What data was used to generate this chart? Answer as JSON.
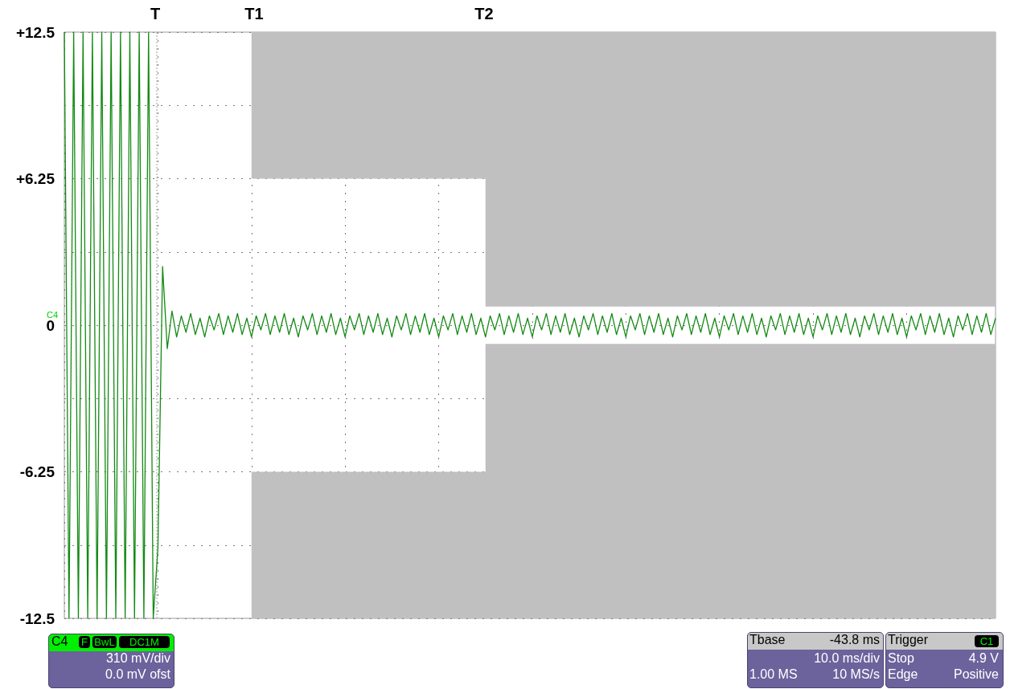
{
  "chart_data": {
    "type": "line",
    "categories": [
      null,
      null,
      null,
      null,
      null,
      null,
      null,
      null,
      null,
      null,
      null,
      null,
      null,
      null,
      null,
      null,
      null,
      null,
      null,
      null,
      null,
      null,
      null,
      null,
      null,
      null,
      null,
      null,
      null,
      null,
      null,
      null,
      null,
      null,
      null,
      null,
      null,
      null,
      null,
      null,
      null,
      null,
      null,
      null,
      null,
      null,
      null,
      null,
      null,
      null,
      null,
      null,
      null,
      null,
      null,
      null,
      null,
      null,
      null,
      null,
      null,
      null,
      null,
      null,
      null,
      null,
      null,
      null,
      null,
      null,
      null,
      null,
      null,
      null,
      null,
      null,
      null,
      null,
      null,
      null,
      null,
      null,
      null,
      null,
      null,
      null,
      null,
      null,
      null,
      null,
      null,
      null,
      null,
      null,
      null,
      null,
      null,
      null,
      null,
      null,
      null,
      null,
      null,
      null,
      null,
      null,
      null,
      null,
      null,
      null,
      null,
      null,
      null,
      null,
      null,
      null,
      null,
      null,
      null,
      null,
      null,
      null,
      null,
      null,
      null,
      null,
      null,
      null,
      null,
      null,
      null,
      null,
      null,
      null,
      null,
      null,
      null,
      null,
      null,
      null,
      null,
      null,
      null,
      null,
      null,
      null,
      null,
      null,
      null,
      null,
      null,
      null,
      null,
      null,
      null,
      null,
      null,
      null,
      null,
      null,
      null,
      null,
      null,
      null,
      null,
      null,
      null,
      null,
      null,
      null,
      null,
      null,
      null,
      null,
      null,
      null,
      null,
      null,
      null,
      null,
      null,
      null,
      null,
      null,
      null,
      null,
      null,
      null,
      null,
      null,
      null,
      null,
      null,
      null,
      null,
      null,
      null,
      null,
      null,
      null
    ],
    "series": [
      {
        "color": "#138a13",
        "values": [
          12.5,
          -12.5,
          12.5,
          -12.5,
          12.5,
          -12.5,
          12.5,
          -12.5,
          12.5,
          -12.5,
          12.5,
          -12.5,
          12.5,
          -12.5,
          12.5,
          -12.5,
          12.5,
          -12.5,
          12.5,
          -12.5,
          -9.5,
          2.5,
          -1.0,
          0.6,
          -0.5,
          0.4,
          -0.3,
          0.5,
          -0.4,
          0.3,
          -0.5,
          0.4,
          -0.2,
          0.5,
          -0.4,
          0.4,
          -0.3,
          0.5,
          -0.4,
          0.3,
          -0.5,
          0.4,
          -0.2,
          0.5,
          -0.4,
          0.4,
          -0.3,
          0.5,
          -0.4,
          0.3,
          -0.5,
          0.4,
          -0.2,
          0.5,
          -0.4,
          0.4,
          -0.3,
          0.5,
          -0.4,
          0.3,
          -0.5,
          0.4,
          -0.2,
          0.5,
          -0.4,
          0.4,
          -0.3,
          0.5,
          -0.4,
          0.3,
          -0.5,
          0.4,
          -0.2,
          0.5,
          -0.4,
          0.4,
          -0.3,
          0.5,
          -0.4,
          0.3,
          -0.5,
          0.4,
          -0.2,
          0.5,
          -0.4,
          0.4,
          -0.3,
          0.5,
          -0.4,
          0.3,
          -0.5,
          0.4,
          -0.2,
          0.5,
          -0.4,
          0.4,
          -0.3,
          0.5,
          -0.4,
          0.3,
          -0.5,
          0.4,
          -0.2,
          0.5,
          -0.4,
          0.4,
          -0.3,
          0.5,
          -0.4,
          0.3,
          -0.5,
          0.4,
          -0.2,
          0.5,
          -0.4,
          0.4,
          -0.3,
          0.5,
          -0.4,
          0.3,
          -0.5,
          0.4,
          -0.2,
          0.5,
          -0.4,
          0.4,
          -0.3,
          0.5,
          -0.4,
          0.3,
          -0.5,
          0.4,
          -0.2,
          0.5,
          -0.4,
          0.4,
          -0.3,
          0.5,
          -0.4,
          0.3,
          -0.5,
          0.4,
          -0.2,
          0.5,
          -0.4,
          0.4,
          -0.3,
          0.5,
          -0.4,
          0.3,
          -0.5,
          0.4,
          -0.2,
          0.5,
          -0.4,
          0.4,
          -0.3,
          0.5,
          -0.4,
          0.3,
          -0.5,
          0.4,
          -0.2,
          0.5,
          -0.4,
          0.4,
          -0.3,
          0.5,
          -0.4,
          0.3,
          -0.5,
          0.4,
          -0.2,
          0.5,
          -0.4,
          0.4,
          -0.3,
          0.5,
          -0.4,
          0.3,
          -0.5,
          0.4,
          -0.2,
          0.5,
          -0.4,
          0.4,
          -0.3,
          0.5,
          -0.4,
          0.3,
          -0.5,
          0.4,
          -0.2,
          0.5,
          -0.4,
          0.4,
          -0.3,
          0.5,
          -0.4,
          0.3
        ]
      }
    ],
    "bands": [
      {
        "axis": "y",
        "from": 6.25,
        "to": 12.5,
        "color": "#c0c0c0"
      },
      {
        "axis": "y",
        "from": -12.5,
        "to": -6.25,
        "color": "#c0c0c0"
      },
      {
        "axis": "y",
        "from": 0.8,
        "to": 12.5,
        "color": "#c0c0c0"
      },
      {
        "axis": "y",
        "from": -12.5,
        "to": -0.8,
        "color": "#c0c0c0"
      }
    ],
    "ylim": [
      -12.5,
      12.5
    ],
    "yticks": [
      {
        "value": -12.5,
        "label": "-12.5"
      },
      {
        "value": -9.375,
        "label": null
      },
      {
        "value": -6.25,
        "label": "-6.25"
      },
      {
        "value": -3.125,
        "label": null
      },
      0,
      {
        "value": 3.125,
        "label": null
      },
      {
        "value": 6.25,
        "label": "+6.25"
      },
      {
        "value": 9.375,
        "label": null
      },
      {
        "value": 12.5,
        "label": "+12.5"
      }
    ],
    "grid": true,
    "annotations": [
      "T",
      "T1",
      "T2",
      "C4",
      "C4",
      "F",
      "BwL",
      "DC1M",
      "310 mV/div",
      "0.0 mV ofst",
      "Tbase",
      "-43.8 ms",
      "10.0 ms/div",
      "1.00 MS",
      "10 MS/s",
      "Trigger",
      "C1",
      "Stop",
      "4.9 V",
      "Edge",
      "Positive"
    ]
  }
}
